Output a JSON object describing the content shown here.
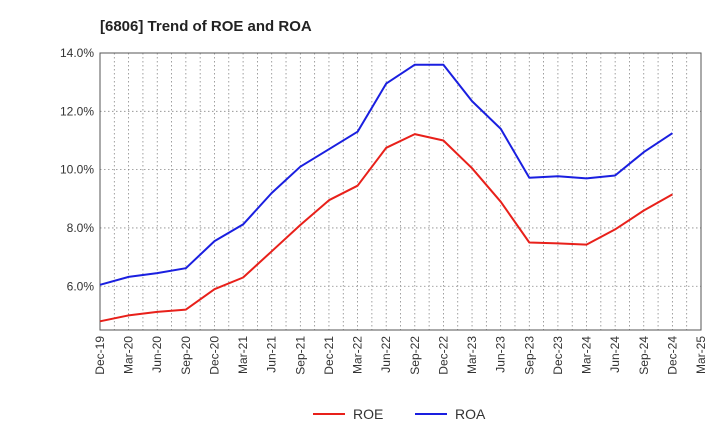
{
  "chart_data": {
    "type": "line",
    "title": "[6806]  Trend of ROE and ROA",
    "xlabel": "",
    "ylabel": "",
    "categories": [
      "Dec-19",
      "Mar-20",
      "Jun-20",
      "Sep-20",
      "Dec-20",
      "Mar-21",
      "Jun-21",
      "Sep-21",
      "Dec-21",
      "Mar-22",
      "Jun-22",
      "Sep-22",
      "Dec-22",
      "Mar-23",
      "Jun-23",
      "Sep-23",
      "Dec-23",
      "Mar-24",
      "Jun-24",
      "Sep-24",
      "Dec-24",
      "Mar-25"
    ],
    "ylim": [
      4.5,
      14.0
    ],
    "yticks": [
      6.0,
      8.0,
      10.0,
      12.0,
      14.0
    ],
    "ytick_labels": [
      "6.0%",
      "8.0%",
      "10.0%",
      "12.0%",
      "14.0%"
    ],
    "grid": true,
    "legend": "bottom-center",
    "series": [
      {
        "name": "ROE",
        "color": "#e8201a",
        "values": [
          4.8,
          5.0,
          5.12,
          5.2,
          5.9,
          6.3,
          7.2,
          8.1,
          8.95,
          9.45,
          10.75,
          11.22,
          11.0,
          10.05,
          8.9,
          7.5,
          7.47,
          7.43,
          7.95,
          8.6,
          9.15,
          null
        ]
      },
      {
        "name": "ROA",
        "color": "#1a1fe0",
        "values": [
          6.05,
          6.32,
          6.45,
          6.62,
          7.55,
          8.12,
          9.2,
          10.1,
          10.7,
          11.3,
          12.95,
          13.6,
          13.6,
          12.35,
          11.4,
          9.72,
          9.77,
          9.7,
          9.8,
          10.6,
          11.25,
          null
        ]
      }
    ]
  }
}
